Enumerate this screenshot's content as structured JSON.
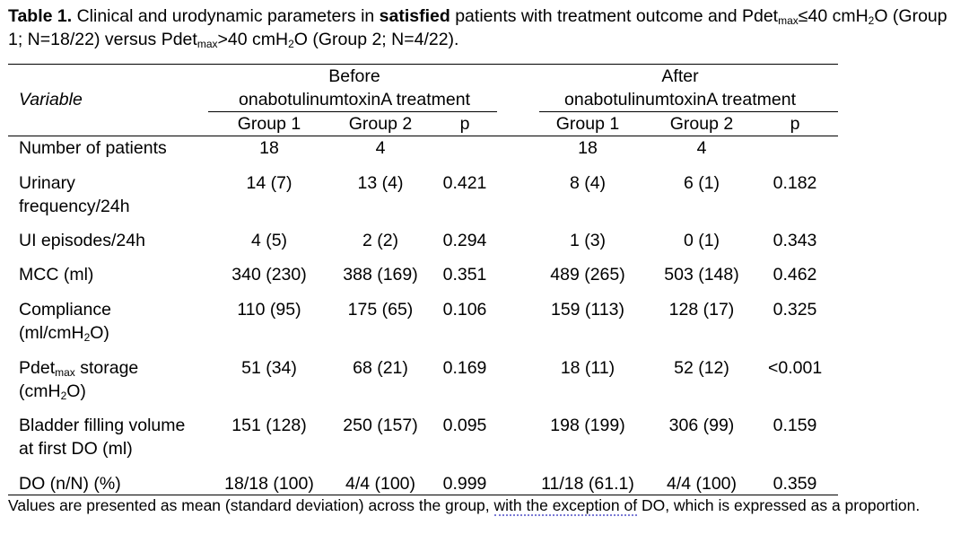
{
  "caption": {
    "label": "Table 1.",
    "part1": " Clinical and urodynamic parameters in ",
    "bold_word": "satisfied",
    "part2": " patients with treatment outcome and Pdet",
    "sub1": "max",
    "part3": "≤40 cmH",
    "sub2": "2",
    "part4": "O (Group 1; N=18/22) versus Pdet",
    "sub3": "max",
    "part5": ">40 cmH",
    "sub4": "2",
    "part6": "O (Group 2; N=4/22)."
  },
  "header": {
    "variable": "Variable",
    "before_line1": "Before",
    "before_line2": "onabotulinumtoxinA treatment",
    "after_line1": "After",
    "after_line2": "onabotulinumtoxinA treatment",
    "group1": "Group 1",
    "group2": "Group 2",
    "p": "p"
  },
  "rows": [
    {
      "label1": "Number of patients",
      "b_g1": "18",
      "b_g2": "4",
      "b_p": "",
      "a_g1": "18",
      "a_g2": "4",
      "a_p": ""
    },
    {
      "label1": "Urinary",
      "label2": "frequency/24h",
      "b_g1": "14 (7)",
      "b_g2": "13 (4)",
      "b_p": "0.421",
      "a_g1": "8 (4)",
      "a_g2": "6 (1)",
      "a_p": "0.182"
    },
    {
      "label1": "UI episodes/24h",
      "b_g1": "4 (5)",
      "b_g2": "2 (2)",
      "b_p": "0.294",
      "a_g1": "1 (3)",
      "a_g2": "0 (1)",
      "a_p": "0.343"
    },
    {
      "label1": "MCC (ml)",
      "b_g1": "340 (230)",
      "b_g2": "388 (169)",
      "b_p": "0.351",
      "a_g1": "489 (265)",
      "a_g2": "503 (148)",
      "a_p": "0.462"
    },
    {
      "label1": "Compliance",
      "label2_pre": "(ml/cmH",
      "label2_sub": "2",
      "label2_post": "O)",
      "b_g1": "110 (95)",
      "b_g2": "175 (65)",
      "b_p": "0.106",
      "a_g1": "159 (113)",
      "a_g2": "128 (17)",
      "a_p": "0.325"
    },
    {
      "label1_pre": "Pdet",
      "label1_sub": "max",
      "label1_post": " storage",
      "label2_pre": "(cmH",
      "label2_sub": "2",
      "label2_post": "O)",
      "b_g1": "51 (34)",
      "b_g2": "68 (21)",
      "b_p": "0.169",
      "a_g1": "18 (11)",
      "a_g2": "52 (12)",
      "a_p": "<0.001"
    },
    {
      "label1": "Bladder filling volume",
      "label2": "at first DO (ml)",
      "b_g1": "151 (128)",
      "b_g2": "250 (157)",
      "b_p": "0.095",
      "a_g1": "198 (199)",
      "a_g2": "306 (99)",
      "a_p": "0.159"
    },
    {
      "label1": "DO (n/N) (%)",
      "b_g1": "18/18 (100)",
      "b_g2": "4/4 (100)",
      "b_p": "0.999",
      "a_g1": "11/18 (61.1)",
      "a_g2": "4/4 (100)",
      "a_p": "0.359"
    }
  ],
  "footnote": {
    "part1": "Values are presented as mean (standard deviation) across the group, ",
    "dotted": "with the exception of",
    "part2": " DO, which is expressed as a proportion."
  }
}
